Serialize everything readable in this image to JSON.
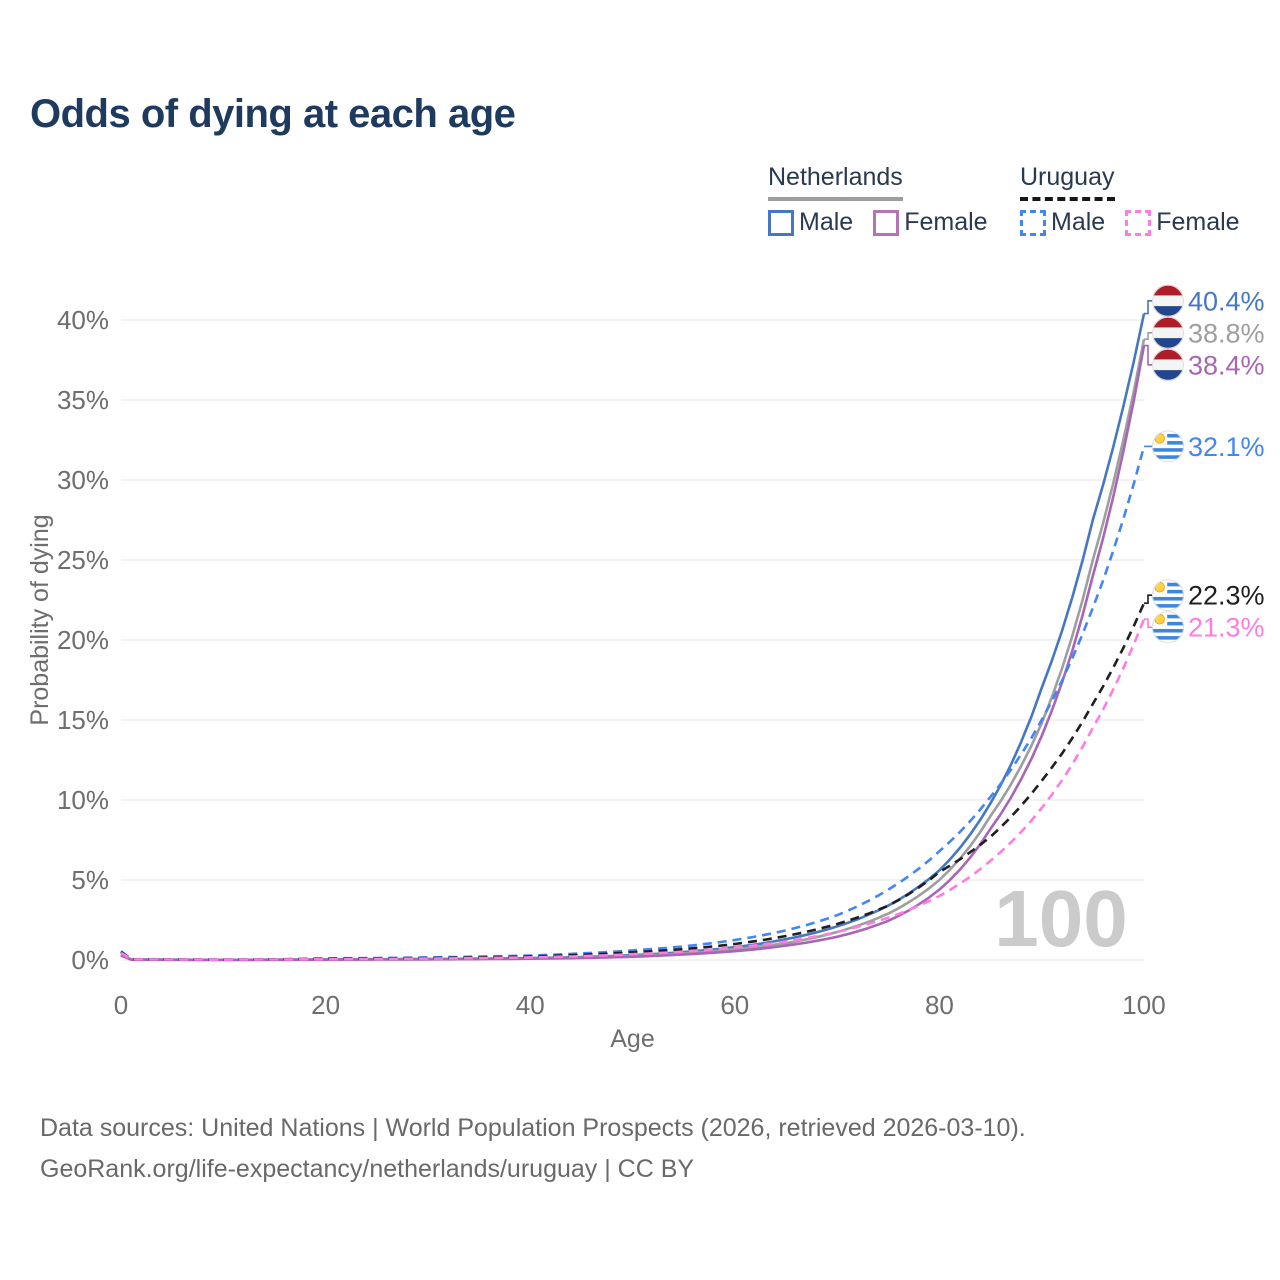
{
  "title": "Odds of dying at each age",
  "watermark_age": "100",
  "legend": {
    "groups": [
      {
        "name": "Netherlands",
        "line_style": "solid",
        "underline_color": "#9e9e9e",
        "items": [
          {
            "label": "Male",
            "color": "#4577c2",
            "dashed": false
          },
          {
            "label": "Female",
            "color": "#b575b5",
            "dashed": false
          }
        ]
      },
      {
        "name": "Uruguay",
        "line_style": "dashed",
        "underline_color": "#161616",
        "items": [
          {
            "label": "Male",
            "color": "#4285f4",
            "dashed": true
          },
          {
            "label": "Female",
            "color": "#ff7ce0",
            "dashed": true
          }
        ]
      }
    ]
  },
  "footer": {
    "line1": "Data sources: United Nations | World Population Prospects (2026, retrieved 2026-03-10).",
    "line2": "GeoRank.org/life-expectancy/netherlands/uruguay | CC BY"
  },
  "chart_data": {
    "type": "line",
    "title": "Odds of dying at each age",
    "xlabel": "Age",
    "ylabel": "Probability of dying",
    "xlim": [
      0,
      100
    ],
    "ylim": [
      0,
      42
    ],
    "x_ticks": [
      0,
      20,
      40,
      60,
      80,
      100
    ],
    "y_ticks": [
      "0%",
      "5%",
      "10%",
      "15%",
      "20%",
      "25%",
      "30%",
      "35%",
      "40%"
    ],
    "grid": "horizontal-only",
    "legend_position": "top-right",
    "x": [
      0,
      1,
      10,
      20,
      30,
      40,
      50,
      55,
      60,
      65,
      70,
      75,
      80,
      85,
      90,
      95,
      100
    ],
    "series": [
      {
        "name": "Netherlands Male",
        "country": "Netherlands",
        "sex": "Male",
        "color": "#4577c2",
        "dashed": false,
        "flag": "nl",
        "end_label": "40.4%",
        "values": [
          0.36,
          0.03,
          0.01,
          0.04,
          0.06,
          0.12,
          0.3,
          0.5,
          0.8,
          1.3,
          2.1,
          3.4,
          5.6,
          9.8,
          17.0,
          27.5,
          40.4
        ]
      },
      {
        "name": "Netherlands Both sexes",
        "country": "Netherlands",
        "sex": "All",
        "color": "#9e9e9e",
        "dashed": false,
        "flag": "nl",
        "end_label": "38.8%",
        "values": [
          0.31,
          0.03,
          0.01,
          0.03,
          0.05,
          0.1,
          0.25,
          0.42,
          0.68,
          1.05,
          1.75,
          2.9,
          5.0,
          9.0,
          14.8,
          25.0,
          38.8
        ]
      },
      {
        "name": "Netherlands Female",
        "country": "Netherlands",
        "sex": "Female",
        "color": "#a965b5",
        "dashed": false,
        "flag": "nl",
        "end_label": "38.4%",
        "values": [
          0.28,
          0.02,
          0.01,
          0.02,
          0.04,
          0.08,
          0.2,
          0.35,
          0.55,
          0.9,
          1.45,
          2.45,
          4.4,
          8.2,
          14.0,
          24.0,
          38.4
        ]
      },
      {
        "name": "Uruguay Male",
        "country": "Uruguay",
        "sex": "Male",
        "color": "#4285f4",
        "dashed": true,
        "flag": "uy",
        "end_label": "32.1%",
        "values": [
          0.55,
          0.05,
          0.02,
          0.1,
          0.16,
          0.28,
          0.6,
          0.85,
          1.25,
          1.85,
          2.8,
          4.4,
          6.8,
          10.2,
          15.0,
          22.0,
          32.1
        ]
      },
      {
        "name": "Uruguay Both sexes",
        "country": "Uruguay",
        "sex": "All",
        "color": "#1f1f1f",
        "dashed": true,
        "flag": "uy",
        "end_label": "22.3%",
        "values": [
          0.5,
          0.04,
          0.02,
          0.08,
          0.12,
          0.22,
          0.48,
          0.68,
          1.0,
          1.5,
          2.25,
          3.4,
          5.5,
          7.7,
          11.2,
          16.0,
          22.3
        ]
      },
      {
        "name": "Uruguay Female",
        "country": "Uruguay",
        "sex": "Female",
        "color": "#ff7ce0",
        "dashed": true,
        "flag": "uy",
        "end_label": "21.3%",
        "values": [
          0.45,
          0.04,
          0.02,
          0.05,
          0.09,
          0.16,
          0.36,
          0.52,
          0.78,
          1.15,
          1.75,
          2.65,
          4.0,
          6.2,
          9.5,
          14.5,
          21.3
        ]
      }
    ]
  }
}
